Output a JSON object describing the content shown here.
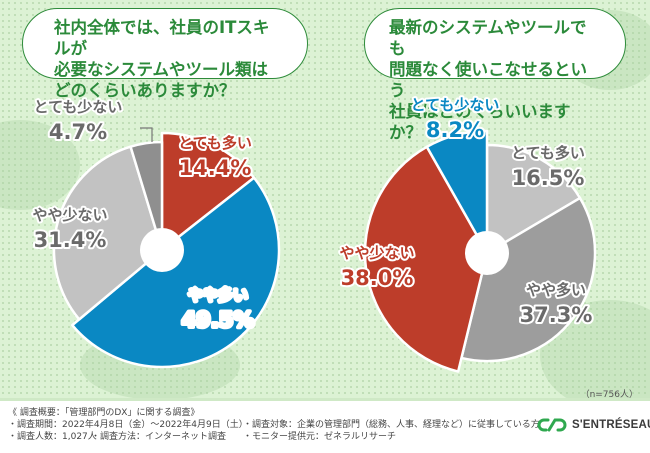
{
  "questions": {
    "left": [
      "社内全体では、社員のITスキルが",
      "必要なシステムやツール類は",
      "どのくらいありますか？"
    ],
    "right": [
      "最新のシステムやツールでも",
      "問題なく使いこなせるという",
      "社員はどのくらいいますか？"
    ]
  },
  "chart_data": [
    {
      "type": "pie",
      "title": "社内全体では、社員のITスキルが必要なシステムやツール類はどのくらいありますか？",
      "categories": [
        "とても多い",
        "やや多い",
        "やや少ない",
        "とても少ない"
      ],
      "values": [
        14.4,
        49.5,
        31.4,
        4.7
      ],
      "labels": [
        "14.4%",
        "49.5%",
        "31.4%",
        "4.7%"
      ],
      "colors": [
        "#bd3d2a",
        "#0a88c3",
        "#c2c2c2",
        "#8f8f8f"
      ],
      "highlighted": [
        true,
        true,
        false,
        false
      ],
      "label_colors": [
        "#bd3d2a",
        "#ffffff",
        "#6a6a6a",
        "#6a6a6a"
      ]
    },
    {
      "type": "pie",
      "title": "最新のシステムやツールでも問題なく使いこなせるという社員はどのくらいいますか？",
      "categories": [
        "とても多い",
        "やや多い",
        "やや少ない",
        "とても少ない"
      ],
      "values": [
        16.5,
        37.3,
        38.0,
        8.2
      ],
      "labels": [
        "16.5%",
        "37.3%",
        "38.0%",
        "8.2%"
      ],
      "colors": [
        "#c2c2c2",
        "#9d9d9d",
        "#bd3d2a",
        "#0a88c3"
      ],
      "highlighted": [
        false,
        false,
        true,
        true
      ],
      "label_colors": [
        "#6a6a6a",
        "#6a6a6a",
        "#bd3d2a",
        "#0a88c3"
      ]
    }
  ],
  "sample_note": "（n=756人）",
  "footer": {
    "heading": "《 調査概要：「管理部門のDX」に関する調査》",
    "period": "・調査期間：2022年4月8日（金）～2022年4月9日（土）",
    "count": "・調査人数：1,027人",
    "method": "・調査方法：インターネット調査",
    "target": "・調査対象：企業の管理部門（総務、人事、経理など）に従事している方",
    "provider": "・モニター提供元：ゼネラルリサーチ"
  },
  "logo": {
    "text": "S'ENTRÉSEAU",
    "color": "#2fa84f"
  }
}
